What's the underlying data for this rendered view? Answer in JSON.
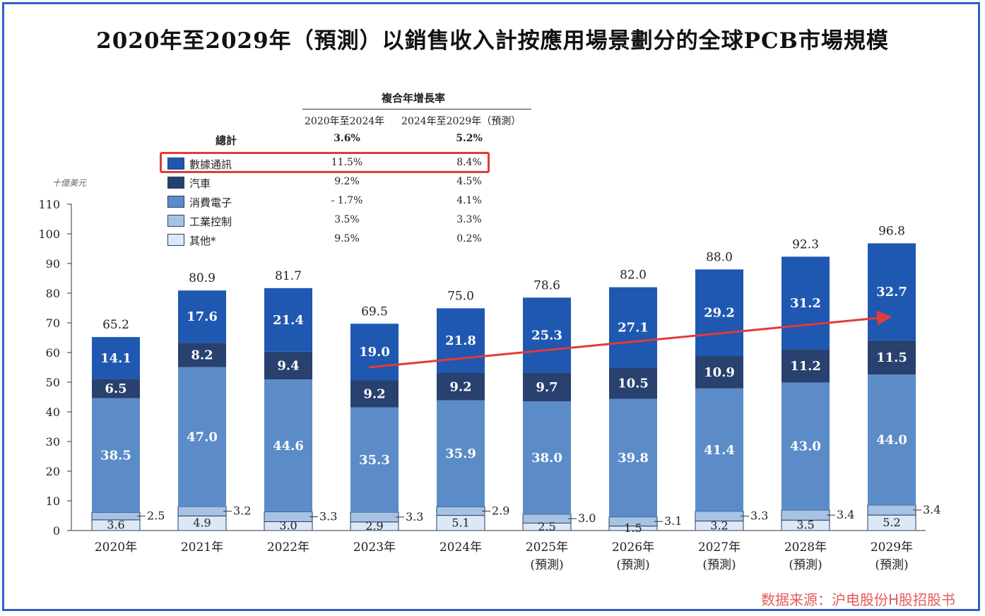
{
  "title": "2020年至2029年（預測）以銷售收入計按應用場景劃分的全球PCB市場規模",
  "unit": "十億美元",
  "source": "数据来源：沪电股份H股招股书",
  "cagr": {
    "heading": "複合年增長率",
    "col1": "2020年至2024年",
    "col2": "2024年至2029年（預測）",
    "rows": [
      {
        "name": "總計",
        "v1": "3.6%",
        "v2": "5.2%",
        "bold": true
      },
      {
        "name": "數據通訊",
        "v1": "11.5%",
        "v2": "8.4%",
        "color": "#1f58b0"
      },
      {
        "name": "汽車",
        "v1": "9.2%",
        "v2": "4.5%",
        "color": "#28416e"
      },
      {
        "name": "消費電子",
        "v1": "- 1.7%",
        "v2": "4.1%",
        "color": "#5b8cc8"
      },
      {
        "name": "工業控制",
        "v1": "3.5%",
        "v2": "3.3%",
        "color": "#a6c3e4"
      },
      {
        "name": "其他*",
        "v1": "9.5%",
        "v2": "0.2%",
        "color": "#dce8f5"
      }
    ]
  },
  "chart_data": {
    "type": "bar",
    "stacked": true,
    "categories": [
      "2020年",
      "2021年",
      "2022年",
      "2023年",
      "2024年",
      "2025年\n(預測)",
      "2026年\n(預測)",
      "2027年\n(預測)",
      "2028年\n(預測)",
      "2029年\n(預測)"
    ],
    "series": [
      {
        "name": "其他*",
        "color": "#dce8f5",
        "values": [
          3.6,
          4.9,
          3.0,
          2.9,
          5.1,
          2.5,
          1.5,
          3.2,
          3.5,
          5.2
        ]
      },
      {
        "name": "工業控制",
        "color": "#a6c3e4",
        "values": [
          2.5,
          3.2,
          3.3,
          3.3,
          2.9,
          3.0,
          3.1,
          3.3,
          3.4,
          3.4
        ]
      },
      {
        "name": "消費電子",
        "color": "#5b8cc8",
        "values": [
          38.5,
          47.0,
          44.6,
          35.3,
          35.9,
          38.0,
          39.8,
          41.4,
          43.0,
          44.0
        ]
      },
      {
        "name": "汽車",
        "color": "#28416e",
        "values": [
          6.5,
          8.2,
          9.4,
          9.2,
          9.2,
          9.7,
          10.5,
          10.9,
          11.2,
          11.5
        ]
      },
      {
        "name": "數據通訊",
        "color": "#1f58b0",
        "values": [
          14.1,
          17.6,
          21.4,
          19.0,
          21.8,
          25.3,
          27.1,
          29.2,
          31.2,
          32.7
        ]
      }
    ],
    "totals": [
      65.2,
      80.9,
      81.7,
      69.5,
      75.0,
      78.6,
      82.0,
      88.0,
      92.3,
      96.8
    ],
    "ylim": [
      0,
      110
    ],
    "yticks": [
      0,
      10,
      20,
      30,
      40,
      50,
      60,
      70,
      80,
      90,
      100,
      110
    ],
    "ylabel": "十億美元",
    "xlabel": "",
    "grid": false,
    "arrow": {
      "from_category": "2023年",
      "to_category": "2029年\n(預測)",
      "color": "#e23b3b"
    }
  }
}
